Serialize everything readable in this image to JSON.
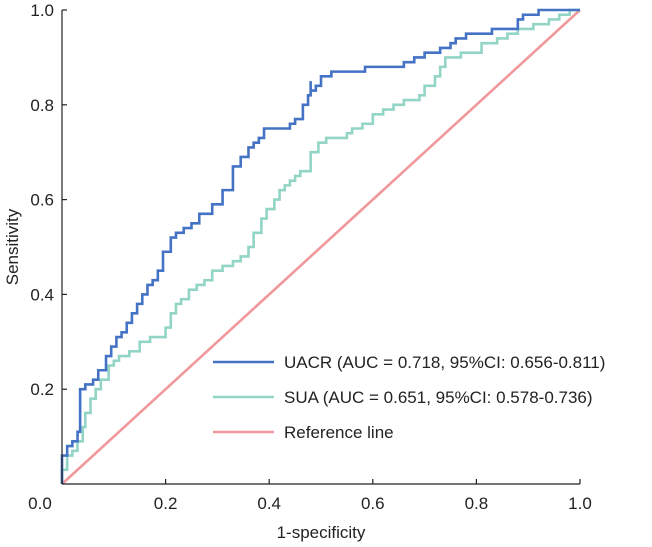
{
  "chart_data": {
    "type": "line",
    "title": "",
    "xlabel": "1-specificity",
    "ylabel": "Sensitivity",
    "xlim": [
      0,
      1
    ],
    "ylim": [
      0,
      1
    ],
    "xticks": [
      "0.0",
      "0.2",
      "0.4",
      "0.6",
      "0.8",
      "1.0"
    ],
    "yticks": [
      "0.0",
      "0.2",
      "0.4",
      "0.6",
      "0.8",
      "1.0"
    ],
    "grid": false,
    "legend_position": "bottom-right",
    "series": [
      {
        "name": "UACR (AUC = 0.718, 95%CI: 0.656-0.811)",
        "color": "#4472C4",
        "points": [
          [
            0,
            0
          ],
          [
            0,
            0.06
          ],
          [
            0.01,
            0.06
          ],
          [
            0.01,
            0.08
          ],
          [
            0.02,
            0.08
          ],
          [
            0.02,
            0.09
          ],
          [
            0.03,
            0.09
          ],
          [
            0.03,
            0.11
          ],
          [
            0.035,
            0.11
          ],
          [
            0.035,
            0.2
          ],
          [
            0.045,
            0.2
          ],
          [
            0.045,
            0.21
          ],
          [
            0.06,
            0.21
          ],
          [
            0.06,
            0.22
          ],
          [
            0.07,
            0.22
          ],
          [
            0.07,
            0.24
          ],
          [
            0.085,
            0.24
          ],
          [
            0.085,
            0.27
          ],
          [
            0.095,
            0.27
          ],
          [
            0.095,
            0.29
          ],
          [
            0.105,
            0.29
          ],
          [
            0.105,
            0.31
          ],
          [
            0.115,
            0.31
          ],
          [
            0.115,
            0.32
          ],
          [
            0.125,
            0.32
          ],
          [
            0.125,
            0.34
          ],
          [
            0.135,
            0.34
          ],
          [
            0.135,
            0.36
          ],
          [
            0.145,
            0.36
          ],
          [
            0.145,
            0.38
          ],
          [
            0.155,
            0.38
          ],
          [
            0.155,
            0.4
          ],
          [
            0.165,
            0.4
          ],
          [
            0.165,
            0.42
          ],
          [
            0.175,
            0.42
          ],
          [
            0.175,
            0.43
          ],
          [
            0.185,
            0.43
          ],
          [
            0.185,
            0.45
          ],
          [
            0.195,
            0.45
          ],
          [
            0.195,
            0.49
          ],
          [
            0.21,
            0.49
          ],
          [
            0.21,
            0.52
          ],
          [
            0.22,
            0.52
          ],
          [
            0.22,
            0.53
          ],
          [
            0.235,
            0.53
          ],
          [
            0.235,
            0.54
          ],
          [
            0.25,
            0.54
          ],
          [
            0.25,
            0.55
          ],
          [
            0.265,
            0.55
          ],
          [
            0.265,
            0.57
          ],
          [
            0.29,
            0.57
          ],
          [
            0.29,
            0.59
          ],
          [
            0.31,
            0.59
          ],
          [
            0.31,
            0.62
          ],
          [
            0.33,
            0.62
          ],
          [
            0.33,
            0.67
          ],
          [
            0.345,
            0.67
          ],
          [
            0.345,
            0.69
          ],
          [
            0.36,
            0.69
          ],
          [
            0.36,
            0.71
          ],
          [
            0.37,
            0.71
          ],
          [
            0.37,
            0.72
          ],
          [
            0.38,
            0.72
          ],
          [
            0.38,
            0.73
          ],
          [
            0.39,
            0.73
          ],
          [
            0.39,
            0.75
          ],
          [
            0.44,
            0.75
          ],
          [
            0.44,
            0.76
          ],
          [
            0.45,
            0.76
          ],
          [
            0.45,
            0.77
          ],
          [
            0.465,
            0.77
          ],
          [
            0.465,
            0.8
          ],
          [
            0.475,
            0.8
          ],
          [
            0.475,
            0.82
          ],
          [
            0.48,
            0.82
          ],
          [
            0.48,
            0.85
          ],
          [
            0.48,
            0.83
          ],
          [
            0.49,
            0.83
          ],
          [
            0.49,
            0.84
          ],
          [
            0.5,
            0.84
          ],
          [
            0.5,
            0.86
          ],
          [
            0.52,
            0.86
          ],
          [
            0.52,
            0.87
          ],
          [
            0.585,
            0.87
          ],
          [
            0.585,
            0.88
          ],
          [
            0.66,
            0.88
          ],
          [
            0.66,
            0.89
          ],
          [
            0.68,
            0.89
          ],
          [
            0.68,
            0.9
          ],
          [
            0.7,
            0.9
          ],
          [
            0.7,
            0.91
          ],
          [
            0.73,
            0.91
          ],
          [
            0.73,
            0.92
          ],
          [
            0.75,
            0.92
          ],
          [
            0.75,
            0.93
          ],
          [
            0.76,
            0.93
          ],
          [
            0.76,
            0.94
          ],
          [
            0.78,
            0.94
          ],
          [
            0.78,
            0.95
          ],
          [
            0.83,
            0.95
          ],
          [
            0.83,
            0.96
          ],
          [
            0.88,
            0.96
          ],
          [
            0.88,
            0.98
          ],
          [
            0.89,
            0.98
          ],
          [
            0.89,
            0.99
          ],
          [
            0.92,
            0.99
          ],
          [
            0.92,
            1.0
          ],
          [
            1.0,
            1.0
          ]
        ]
      },
      {
        "name": "SUA (AUC = 0.651, 95%CI: 0.578-0.736)",
        "color": "#93D5C5",
        "points": [
          [
            0,
            0
          ],
          [
            0,
            0.03
          ],
          [
            0.01,
            0.03
          ],
          [
            0.01,
            0.06
          ],
          [
            0.02,
            0.06
          ],
          [
            0.02,
            0.07
          ],
          [
            0.03,
            0.07
          ],
          [
            0.03,
            0.09
          ],
          [
            0.04,
            0.09
          ],
          [
            0.04,
            0.12
          ],
          [
            0.045,
            0.12
          ],
          [
            0.045,
            0.15
          ],
          [
            0.055,
            0.15
          ],
          [
            0.055,
            0.18
          ],
          [
            0.065,
            0.18
          ],
          [
            0.065,
            0.2
          ],
          [
            0.075,
            0.2
          ],
          [
            0.075,
            0.22
          ],
          [
            0.09,
            0.22
          ],
          [
            0.09,
            0.25
          ],
          [
            0.1,
            0.25
          ],
          [
            0.1,
            0.26
          ],
          [
            0.11,
            0.26
          ],
          [
            0.11,
            0.27
          ],
          [
            0.13,
            0.27
          ],
          [
            0.13,
            0.28
          ],
          [
            0.15,
            0.28
          ],
          [
            0.15,
            0.3
          ],
          [
            0.17,
            0.3
          ],
          [
            0.17,
            0.31
          ],
          [
            0.2,
            0.31
          ],
          [
            0.2,
            0.33
          ],
          [
            0.21,
            0.33
          ],
          [
            0.21,
            0.36
          ],
          [
            0.22,
            0.36
          ],
          [
            0.22,
            0.38
          ],
          [
            0.23,
            0.38
          ],
          [
            0.23,
            0.39
          ],
          [
            0.245,
            0.39
          ],
          [
            0.245,
            0.41
          ],
          [
            0.26,
            0.41
          ],
          [
            0.26,
            0.42
          ],
          [
            0.275,
            0.42
          ],
          [
            0.275,
            0.43
          ],
          [
            0.29,
            0.43
          ],
          [
            0.29,
            0.45
          ],
          [
            0.31,
            0.45
          ],
          [
            0.31,
            0.46
          ],
          [
            0.33,
            0.46
          ],
          [
            0.33,
            0.47
          ],
          [
            0.345,
            0.47
          ],
          [
            0.345,
            0.48
          ],
          [
            0.36,
            0.48
          ],
          [
            0.36,
            0.5
          ],
          [
            0.37,
            0.5
          ],
          [
            0.37,
            0.53
          ],
          [
            0.385,
            0.53
          ],
          [
            0.385,
            0.56
          ],
          [
            0.395,
            0.56
          ],
          [
            0.395,
            0.58
          ],
          [
            0.41,
            0.58
          ],
          [
            0.41,
            0.6
          ],
          [
            0.42,
            0.6
          ],
          [
            0.42,
            0.62
          ],
          [
            0.43,
            0.62
          ],
          [
            0.43,
            0.63
          ],
          [
            0.44,
            0.63
          ],
          [
            0.44,
            0.64
          ],
          [
            0.45,
            0.64
          ],
          [
            0.45,
            0.65
          ],
          [
            0.46,
            0.65
          ],
          [
            0.46,
            0.66
          ],
          [
            0.48,
            0.66
          ],
          [
            0.48,
            0.7
          ],
          [
            0.495,
            0.7
          ],
          [
            0.495,
            0.72
          ],
          [
            0.51,
            0.72
          ],
          [
            0.51,
            0.73
          ],
          [
            0.55,
            0.73
          ],
          [
            0.55,
            0.74
          ],
          [
            0.56,
            0.74
          ],
          [
            0.56,
            0.75
          ],
          [
            0.58,
            0.75
          ],
          [
            0.58,
            0.76
          ],
          [
            0.6,
            0.76
          ],
          [
            0.6,
            0.78
          ],
          [
            0.62,
            0.78
          ],
          [
            0.62,
            0.79
          ],
          [
            0.64,
            0.79
          ],
          [
            0.64,
            0.8
          ],
          [
            0.66,
            0.8
          ],
          [
            0.66,
            0.81
          ],
          [
            0.69,
            0.81
          ],
          [
            0.69,
            0.82
          ],
          [
            0.7,
            0.82
          ],
          [
            0.7,
            0.84
          ],
          [
            0.72,
            0.84
          ],
          [
            0.72,
            0.86
          ],
          [
            0.73,
            0.86
          ],
          [
            0.73,
            0.88
          ],
          [
            0.74,
            0.88
          ],
          [
            0.74,
            0.9
          ],
          [
            0.77,
            0.9
          ],
          [
            0.77,
            0.91
          ],
          [
            0.81,
            0.91
          ],
          [
            0.81,
            0.93
          ],
          [
            0.84,
            0.93
          ],
          [
            0.84,
            0.94
          ],
          [
            0.86,
            0.94
          ],
          [
            0.86,
            0.95
          ],
          [
            0.88,
            0.95
          ],
          [
            0.88,
            0.96
          ],
          [
            0.91,
            0.96
          ],
          [
            0.91,
            0.97
          ],
          [
            0.94,
            0.97
          ],
          [
            0.94,
            0.98
          ],
          [
            0.96,
            0.98
          ],
          [
            0.96,
            0.99
          ],
          [
            0.98,
            0.99
          ],
          [
            0.98,
            1.0
          ],
          [
            1.0,
            1.0
          ]
        ]
      },
      {
        "name": "Reference line",
        "color": "#F0989B",
        "points": [
          [
            0,
            0
          ],
          [
            1,
            1
          ]
        ]
      }
    ]
  }
}
